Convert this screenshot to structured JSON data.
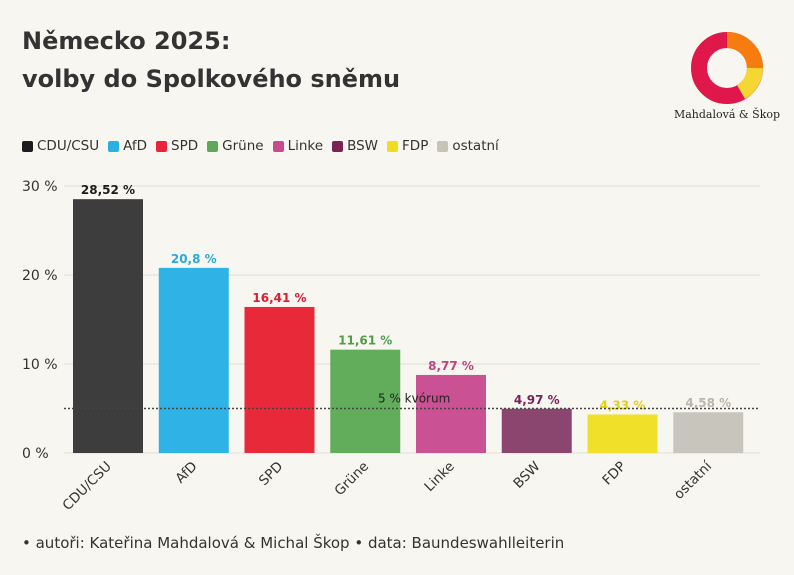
{
  "header": {
    "title_line1": "Německo 2025:",
    "title_line2": "volby do Spolkového sněmu"
  },
  "logo": {
    "text": "Mahdalová & Škop",
    "colors": [
      "#e0174a",
      "#f77c0f",
      "#f5d733"
    ]
  },
  "legend": [
    {
      "label": "CDU/CSU",
      "color": "#1c1c1c"
    },
    {
      "label": "AfD",
      "color": "#2ab1e4"
    },
    {
      "label": "SPD",
      "color": "#e8233a"
    },
    {
      "label": "Grüne",
      "color": "#5fa85a"
    },
    {
      "label": "Linke",
      "color": "#c84a8d"
    },
    {
      "label": "BSW",
      "color": "#7a2456"
    },
    {
      "label": "FDP",
      "color": "#f2dc1e"
    },
    {
      "label": "ostatní",
      "color": "#c6c4b8"
    }
  ],
  "chart_data": {
    "type": "bar",
    "categories": [
      "CDU/CSU",
      "AfD",
      "SPD",
      "Grüne",
      "Linke",
      "BSW",
      "FDP",
      "ostatní"
    ],
    "values": [
      28.52,
      20.8,
      16.41,
      11.61,
      8.77,
      4.97,
      4.33,
      4.58
    ],
    "value_labels": [
      "28,52 %",
      "20,8 %",
      "16,41 %",
      "11,61 %",
      "8,77 %",
      "4,97 %",
      "4,33 %",
      "4,58 %"
    ],
    "bar_colors": [
      "#3d3d3d",
      "#2fb3e6",
      "#e8293a",
      "#62ad5c",
      "#c95194",
      "#8b4670",
      "#f0e02a",
      "#c8c6bc"
    ],
    "label_colors": [
      "#1c1c1c",
      "#2aa9dc",
      "#d81f33",
      "#4f9d49",
      "#c1437f",
      "#7a2456",
      "#e6cf10",
      "#b8b6aa"
    ],
    "ylim": [
      0,
      30
    ],
    "yticks": [
      0,
      10,
      20,
      30
    ],
    "ytick_labels": [
      "0 %",
      "10 %",
      "20 %",
      "30 %"
    ],
    "gridlines": true,
    "threshold": {
      "value": 5,
      "label": "5 % kvórum"
    }
  },
  "footer": {
    "text": "• autoři: Kateřina Mahdalová & Michal Škop • data: Baundeswahlleiterin"
  }
}
